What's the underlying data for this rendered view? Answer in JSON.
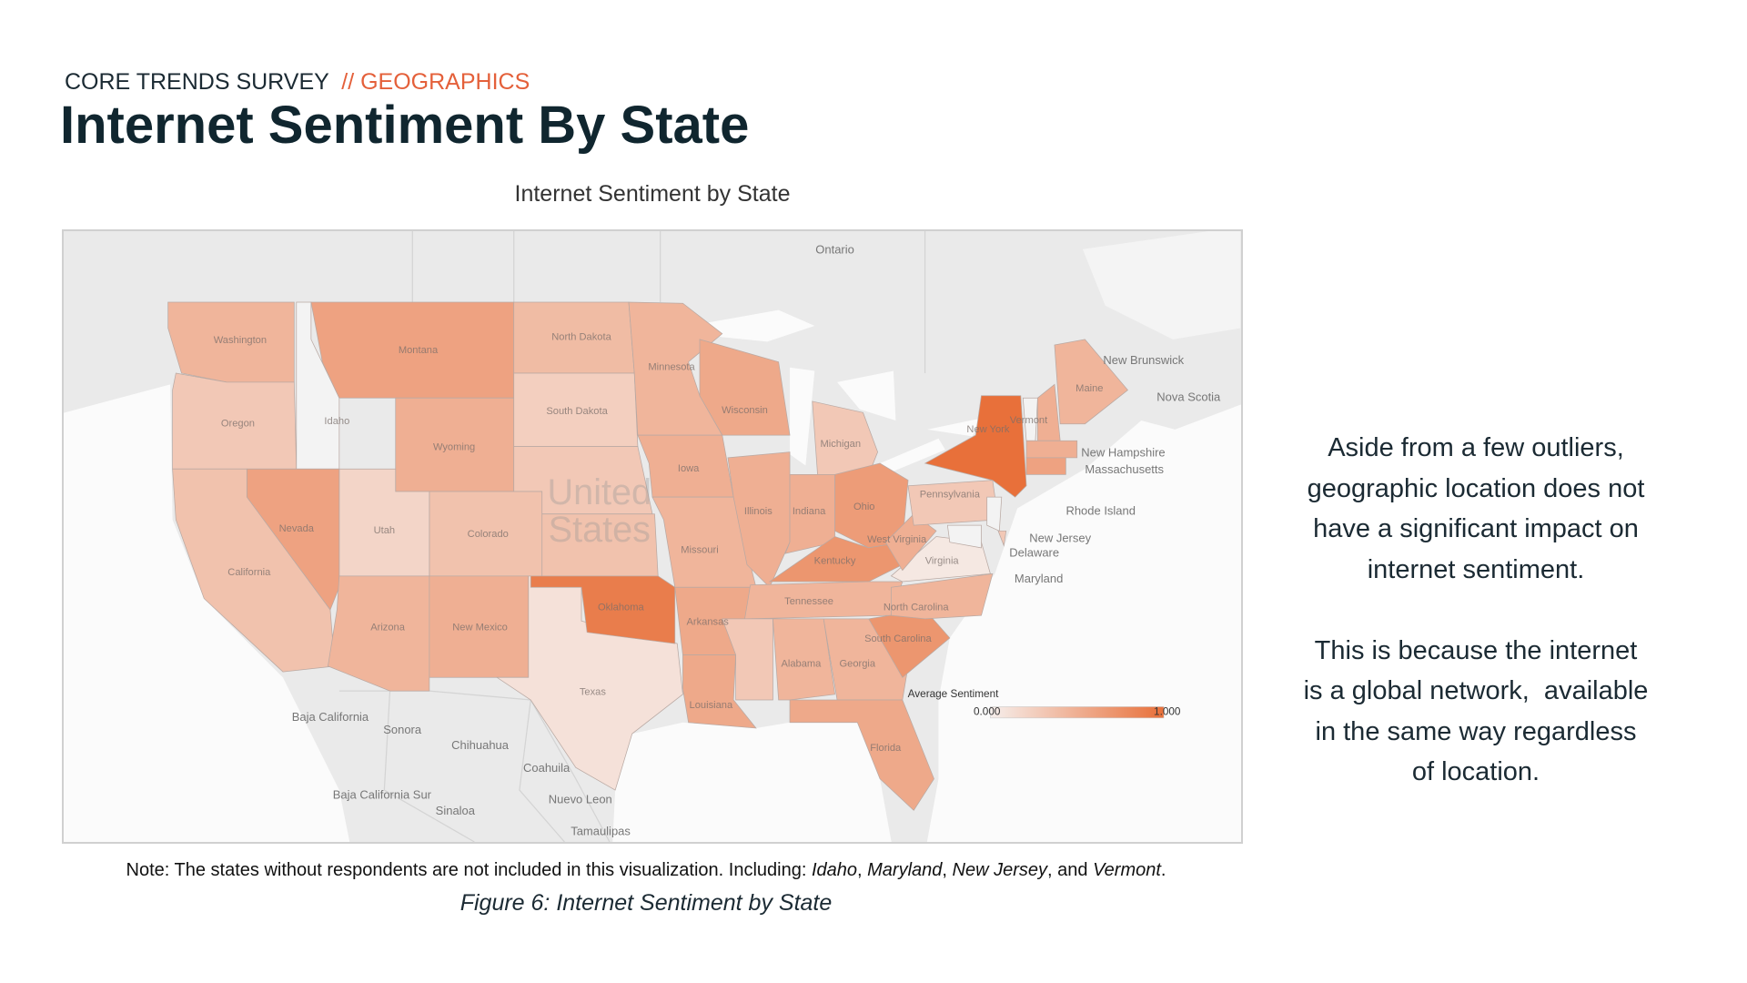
{
  "header": {
    "kicker": "CORE TRENDS SURVEY",
    "section": "// GEOGRAPHICS",
    "title": "Internet Sentiment By State"
  },
  "map": {
    "title": "Internet Sentiment by State",
    "states": [
      {
        "label": "Washington",
        "value": 0.45
      },
      {
        "label": "Oregon",
        "value": 0.3
      },
      {
        "label": "Idaho",
        "value": null
      },
      {
        "label": "Montana",
        "value": 0.6
      },
      {
        "label": "Wyoming",
        "value": 0.5
      },
      {
        "label": "North Dakota",
        "value": 0.4
      },
      {
        "label": "South Dakota",
        "value": 0.25
      },
      {
        "label": null,
        "value": 0.3
      },
      {
        "label": null,
        "value": 0.35
      },
      {
        "label": "Colorado",
        "value": 0.35
      },
      {
        "label": "Utah",
        "value": 0.2
      },
      {
        "label": "Nevada",
        "value": 0.6
      },
      {
        "label": "California",
        "value": 0.35
      },
      {
        "label": "Arizona",
        "value": 0.45
      },
      {
        "label": "New Mexico",
        "value": 0.5
      },
      {
        "label": "Texas",
        "value": 0.1
      },
      {
        "label": "Oklahoma",
        "value": 0.9
      },
      {
        "label": "Minnesota",
        "value": 0.45
      },
      {
        "label": "Iowa",
        "value": 0.5
      },
      {
        "label": "Missouri",
        "value": 0.45
      },
      {
        "label": "Arkansas",
        "value": 0.55
      },
      {
        "label": "Louisiana",
        "value": 0.55
      },
      {
        "label": "Wisconsin",
        "value": 0.55
      },
      {
        "label": "Illinois",
        "value": 0.5
      },
      {
        "label": "Michigan",
        "value": 0.3
      },
      {
        "label": "Indiana",
        "value": 0.5
      },
      {
        "label": "Ohio",
        "value": 0.65
      },
      {
        "label": "Kentucky",
        "value": 0.7
      },
      {
        "label": "Tennessee",
        "value": 0.45
      },
      {
        "label": null,
        "value": 0.3
      },
      {
        "label": "Alabama",
        "value": 0.45
      },
      {
        "label": "Georgia",
        "value": 0.45
      },
      {
        "label": "Florida",
        "value": 0.55
      },
      {
        "label": "South Carolina",
        "value": 0.7
      },
      {
        "label": "North Carolina",
        "value": 0.45
      },
      {
        "label": "Virginia",
        "value": 0.05
      },
      {
        "label": "West Virginia",
        "value": 0.5
      },
      {
        "label": "Pennsylvania",
        "value": 0.3
      },
      {
        "label": "New York",
        "value": 1.0
      },
      {
        "label": "Vermont",
        "value": null
      },
      {
        "label": null,
        "value": 0.5
      },
      {
        "label": "Maine",
        "value": 0.45
      },
      {
        "label": null,
        "value": 0.5
      },
      {
        "label": null,
        "value": 0.6
      },
      {
        "label": null,
        "value": null
      },
      {
        "label": null,
        "value": null
      },
      {
        "label": null,
        "value": 0.3
      }
    ],
    "place_labels": [
      "Ontario",
      "New Brunswick",
      "Nova Scotia",
      "New Hampshire",
      "Massachusetts",
      "Rhode Island",
      "New Jersey",
      "Delaware",
      "Maryland",
      "Baja California",
      "Sonora",
      "Chihuahua",
      "Coahuila",
      "Baja California Sur",
      "Sinaloa",
      "Nuevo Leon",
      "Tamaulipas"
    ],
    "watermark": [
      "United",
      "States"
    ],
    "legend": {
      "title": "Average Sentiment",
      "ticks": [
        {
          "value": 0,
          "label": "0.000"
        },
        {
          "value": 1,
          "label": "1.000"
        }
      ],
      "colors": [
        "#f6eeeb",
        "#e8703a"
      ],
      "missing_color": "#f3f3f3"
    }
  },
  "note": [
    {
      "text": "Note: The states without respondents are not included in this visualization. Including: ",
      "italic": false
    },
    {
      "text": "Idaho",
      "italic": true
    },
    {
      "text": ", ",
      "italic": false
    },
    {
      "text": "Maryland",
      "italic": true
    },
    {
      "text": ", ",
      "italic": false
    },
    {
      "text": "New Jersey",
      "italic": true
    },
    {
      "text": ", and ",
      "italic": false
    },
    {
      "text": "Vermont",
      "italic": true
    },
    {
      "text": ".",
      "italic": false
    }
  ],
  "caption": "Figure 6: Internet Sentiment by State",
  "sidebar": [
    [
      "Aside from a few outliers,",
      "geographic location does not",
      "have a significant impact on",
      "internet sentiment."
    ],
    [
      "This is because the internet",
      "is a global network,  available",
      "in the same way regardless",
      "of location."
    ]
  ]
}
